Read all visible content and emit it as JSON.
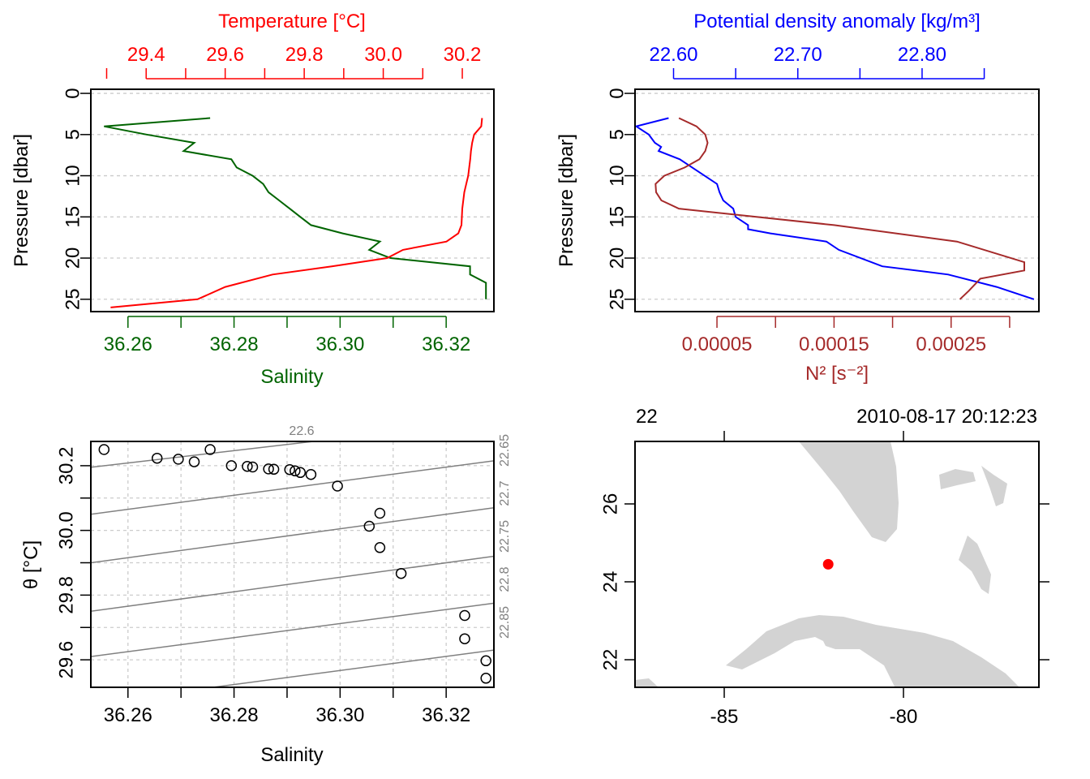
{
  "colors": {
    "temperature": "#ff0000",
    "salinity": "#006400",
    "density": "#0000ff",
    "n2": "#a52a2a",
    "isopycnal": "#808080",
    "land": "#d3d3d3",
    "station": "#ff0000"
  },
  "chart_data": [
    {
      "type": "line",
      "panel": "temperature-salinity-profile",
      "ylabel": "Pressure [dbar]",
      "ylim": [
        26.5,
        -0.5
      ],
      "y_ticks": [
        "0",
        "5",
        "10",
        "15",
        "20",
        "25"
      ],
      "grid": true,
      "top_axis": {
        "label": "Temperature [°C]",
        "lim": [
          29.26,
          30.28
        ],
        "ticks": [
          "29.4",
          "29.6",
          "29.8",
          "30.0",
          "30.2"
        ],
        "minor_ticks": [
          29.3,
          29.5,
          29.7,
          29.9,
          30.1
        ]
      },
      "bottom_axis": {
        "label": "Salinity",
        "lim": [
          36.253,
          36.329
        ],
        "ticks": [
          "36.26",
          "36.28",
          "36.30",
          "36.32"
        ],
        "minor_ticks": [
          36.27,
          36.29,
          36.31
        ]
      },
      "series": [
        {
          "name": "Temperature",
          "axis": "top",
          "x": [
            30.25,
            30.248,
            30.23,
            30.225,
            30.222,
            30.22,
            30.215,
            30.21,
            30.205,
            30.2,
            30.198,
            30.19,
            30.16,
            30.05,
            30.01,
            29.87,
            29.72,
            29.6,
            29.53,
            29.31
          ],
          "y": [
            3,
            4,
            5,
            6,
            7,
            8,
            10,
            11,
            12,
            14,
            16,
            17,
            18,
            19,
            20,
            21,
            22,
            23.5,
            25,
            26
          ]
        },
        {
          "name": "Salinity",
          "axis": "bottom",
          "x": [
            36.2755,
            36.2555,
            36.2635,
            36.2725,
            36.2705,
            36.2795,
            36.2805,
            36.2835,
            36.2855,
            36.2865,
            36.2885,
            36.2905,
            36.2925,
            36.2945,
            36.3005,
            36.3075,
            36.3055,
            36.3095,
            36.3245,
            36.3245,
            36.3275,
            36.3275
          ],
          "y": [
            3,
            4,
            5,
            6,
            7,
            8,
            9,
            10,
            11,
            12,
            13,
            14,
            15,
            16,
            17,
            18,
            19,
            20,
            21,
            22,
            23,
            25
          ]
        }
      ]
    },
    {
      "type": "line",
      "panel": "density-n2-profile",
      "ylabel": "Pressure [dbar]",
      "ylim": [
        26.5,
        -0.5
      ],
      "y_ticks": [
        "0",
        "5",
        "10",
        "15",
        "20",
        "25"
      ],
      "grid": true,
      "top_axis": {
        "label": "Potential density anomaly [kg/m³]",
        "lim": [
          22.569,
          22.894
        ],
        "ticks": [
          "22.60",
          "22.70",
          "22.80"
        ],
        "minor_ticks": [
          22.65,
          22.75,
          22.85
        ]
      },
      "bottom_axis": {
        "label": "N² [s⁻²]",
        "lim": [
          -2e-05,
          0.000325
        ],
        "ticks": [
          "0.00005",
          "0.00015",
          "0.00025"
        ],
        "minor_ticks": [
          0.0001,
          0.0002,
          0.0003
        ]
      },
      "series": [
        {
          "name": "Potential density anomaly",
          "axis": "top",
          "x": [
            22.596,
            22.57,
            22.58,
            22.585,
            22.59,
            22.588,
            22.605,
            22.615,
            22.625,
            22.635,
            22.637,
            22.64,
            22.648,
            22.65,
            22.66,
            22.66,
            22.678,
            22.723,
            22.733,
            22.768,
            22.821,
            22.86,
            22.89
          ],
          "y": [
            3,
            4,
            5,
            6,
            6.5,
            7,
            8,
            9,
            10,
            11,
            12,
            13,
            14,
            15,
            16,
            16.5,
            17,
            18,
            19,
            21,
            22,
            23.5,
            25
          ]
        },
        {
          "name": "N2",
          "axis": "bottom",
          "x": [
            1.75e-05,
            3.25e-05,
            4e-05,
            4.2e-05,
            4e-05,
            3.5e-05,
            2.25e-05,
            5e-06,
            -2.5e-06,
            -2e-06,
            2.5e-06,
            1.75e-05,
            0.00015,
            0.000255,
            0.0003125,
            0.0003125,
            0.000275,
            0.000265,
            0.0002575
          ],
          "y": [
            3,
            4,
            5,
            6,
            7,
            8,
            9,
            10,
            11,
            12,
            13,
            14,
            16,
            18,
            20.5,
            21.5,
            22.5,
            24,
            25
          ]
        }
      ]
    },
    {
      "type": "scatter",
      "panel": "ts-diagram",
      "xlabel": "Salinity",
      "ylabel": "θ [°C]",
      "xlim": [
        36.253,
        36.329
      ],
      "ylim": [
        29.515,
        30.275
      ],
      "x_ticks": [
        "36.26",
        "36.28",
        "36.30",
        "36.32"
      ],
      "y_ticks": [
        "29.6",
        "29.8",
        "30.0",
        "30.2"
      ],
      "grid": true,
      "isopycnal_labels": [
        "22.6",
        "22.65",
        "22.7",
        "22.75",
        "22.8",
        "22.85"
      ],
      "points": {
        "x": [
          36.2555,
          36.2655,
          36.2695,
          36.2725,
          36.2755,
          36.2795,
          36.2825,
          36.2835,
          36.2865,
          36.2875,
          36.2905,
          36.2915,
          36.2925,
          36.2945,
          36.2995,
          36.3055,
          36.3075,
          36.3075,
          36.3115,
          36.3235,
          36.3235,
          36.3275,
          36.3275
        ],
        "y": [
          30.25,
          30.223,
          30.22,
          30.212,
          30.25,
          30.2,
          30.198,
          30.196,
          30.19,
          30.189,
          30.188,
          30.184,
          30.179,
          30.173,
          30.137,
          30.013,
          30.053,
          29.947,
          29.867,
          29.737,
          29.665,
          29.597,
          29.543
        ]
      }
    },
    {
      "type": "map",
      "panel": "station-map",
      "station_label": "22",
      "datetime": "2010-08-17 20:12:23",
      "xlim": [
        -87.5,
        -83.2
      ],
      "ylim": [
        21.35,
        27.6
      ],
      "x_ticks": [
        "-85",
        "-80"
      ],
      "y_ticks": [
        "22",
        "24",
        "26"
      ],
      "station": {
        "lon": -82.1,
        "lat": 24.45
      }
    }
  ]
}
